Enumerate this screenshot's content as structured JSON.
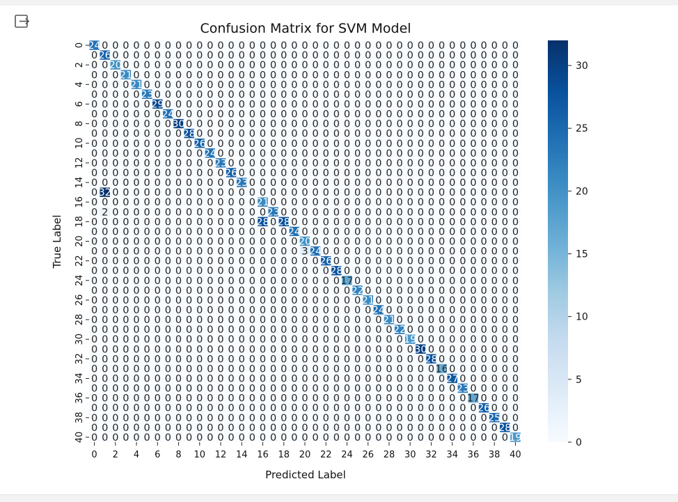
{
  "toolbar": {
    "output_icon": "output-expand-icon"
  },
  "colors": {
    "low": "#f7fbff",
    "high": "#08306b",
    "grid_line": "#ffffff"
  },
  "chart_data": {
    "type": "heatmap",
    "title": "Confusion Matrix for SVM Model",
    "xlabel": "Predicted Label",
    "ylabel": "True Label",
    "colormap": "Blues",
    "size": 41,
    "diagonal": [
      24,
      26,
      20,
      21,
      21,
      23,
      29,
      24,
      30,
      28,
      26,
      24,
      23,
      26,
      23,
      0,
      21,
      23,
      28,
      24,
      20,
      24,
      26,
      28,
      17,
      22,
      21,
      24,
      21,
      22,
      19,
      30,
      28,
      16,
      27,
      23,
      17,
      26,
      25,
      28,
      19
    ],
    "off_diagonal": [
      {
        "row": 15,
        "col": 1,
        "value": 32
      },
      {
        "row": 17,
        "col": 1,
        "value": 2
      },
      {
        "row": 18,
        "col": 16,
        "value": 28
      },
      {
        "row": 21,
        "col": 20,
        "value": 3
      }
    ],
    "x_ticks": [
      "0",
      "2",
      "4",
      "6",
      "8",
      "10",
      "12",
      "14",
      "16",
      "18",
      "20",
      "22",
      "24",
      "26",
      "28",
      "30",
      "32",
      "34",
      "36",
      "38",
      "40"
    ],
    "y_ticks": [
      "0",
      "2",
      "4",
      "6",
      "8",
      "10",
      "12",
      "14",
      "16",
      "18",
      "20",
      "22",
      "24",
      "26",
      "28",
      "30",
      "32",
      "34",
      "36",
      "38",
      "40"
    ],
    "colorbar": {
      "min": 0,
      "max": 32,
      "ticks": [
        "0",
        "5",
        "10",
        "15",
        "20",
        "25",
        "30"
      ]
    }
  }
}
